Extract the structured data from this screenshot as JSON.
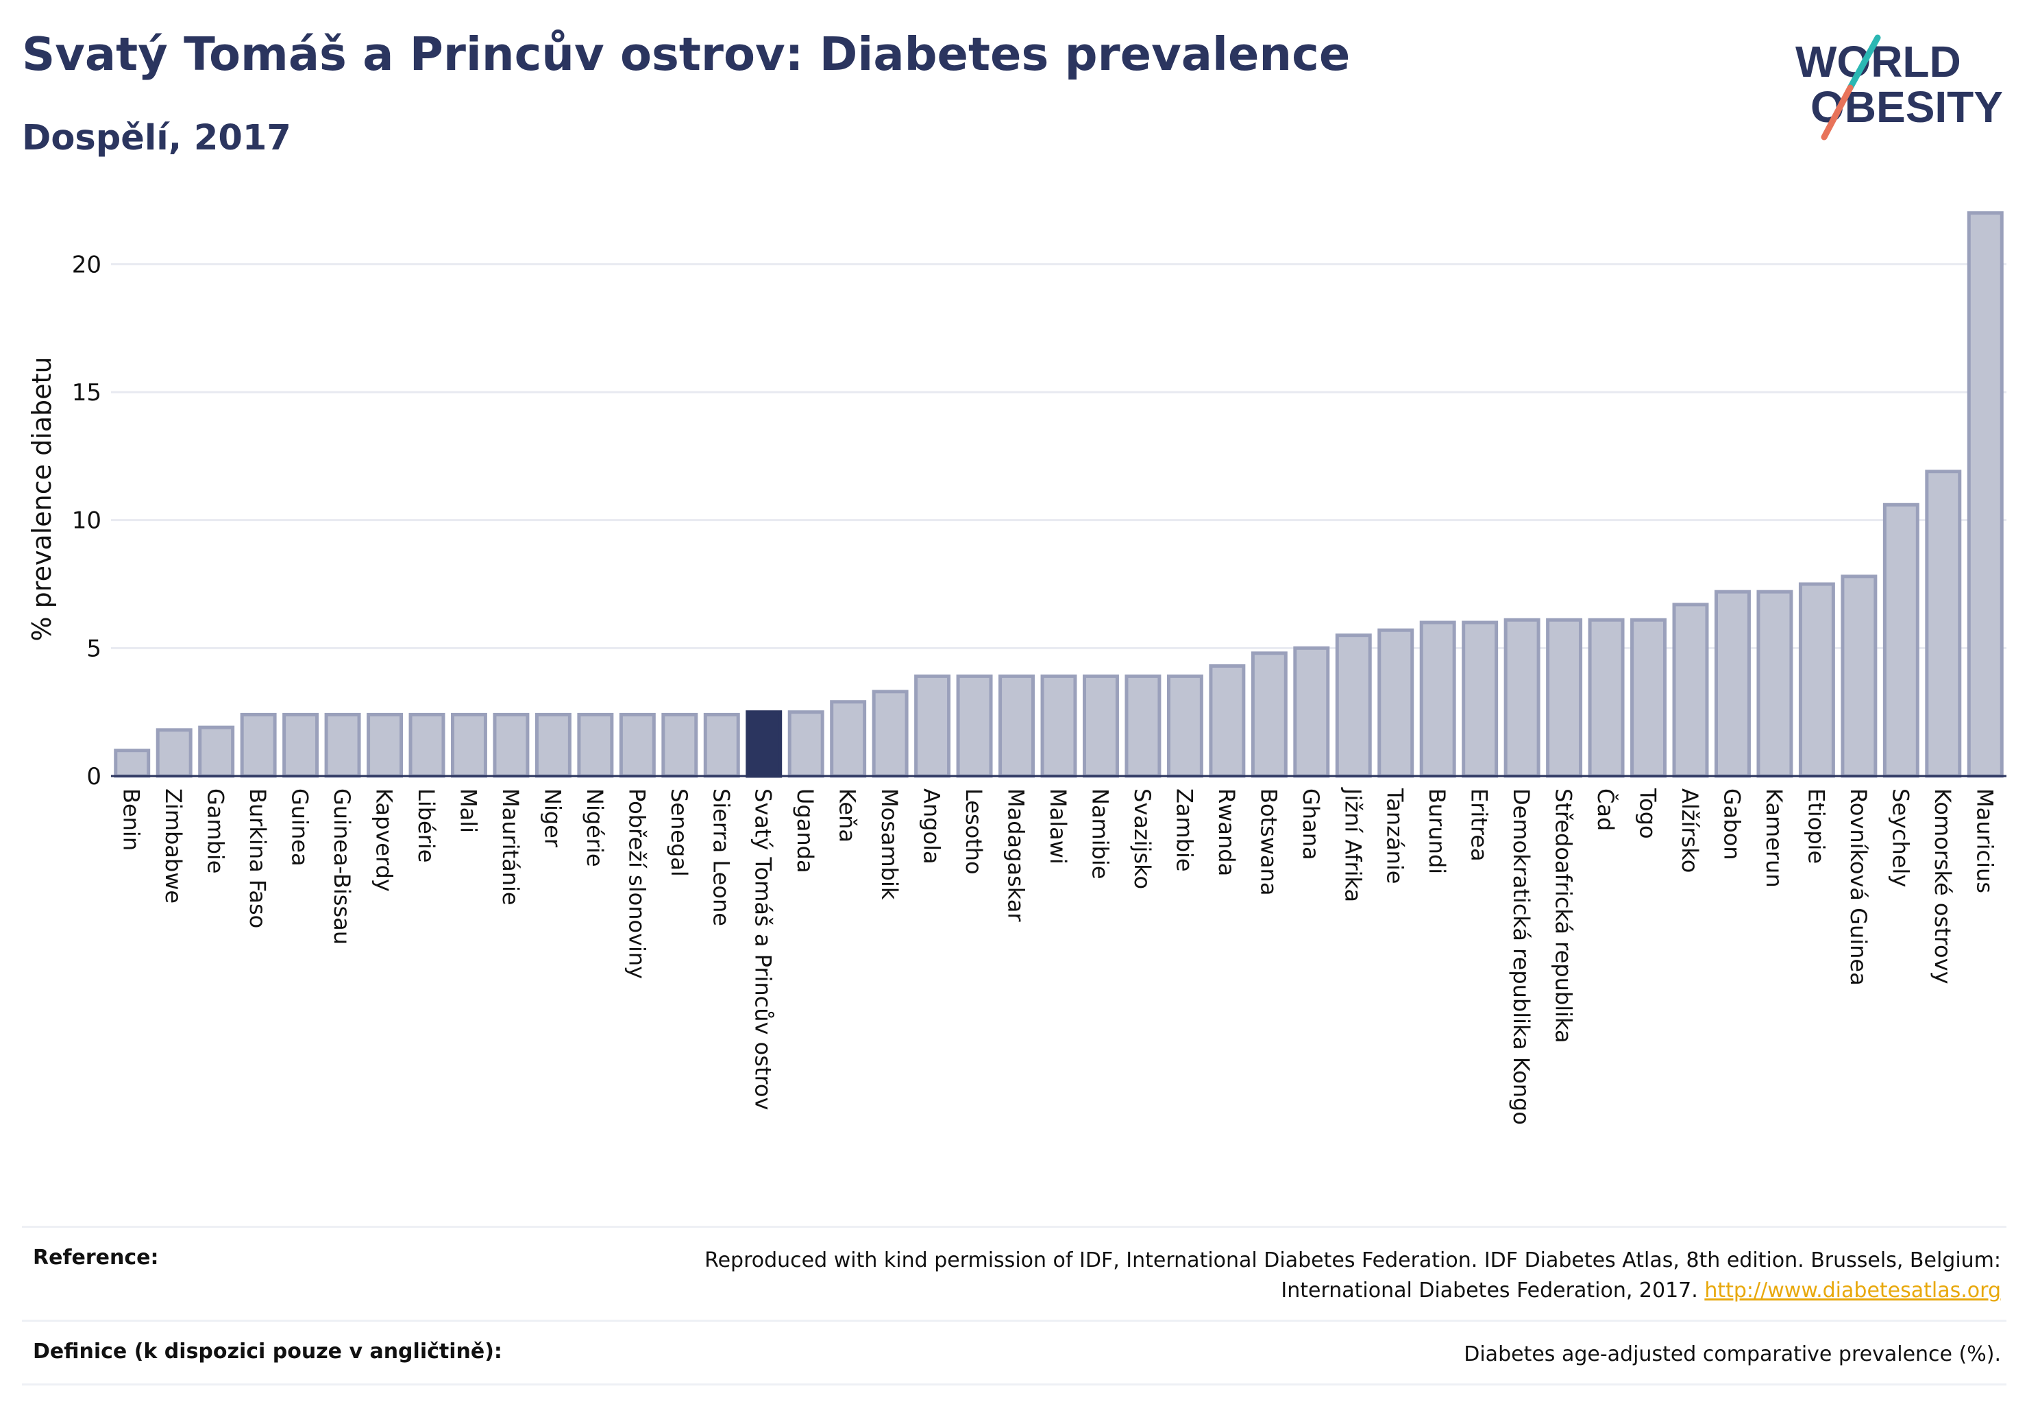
{
  "header": {
    "title": "Svatý Tomáš a Princův ostrov: Diabetes prevalence",
    "subtitle": "Dospělí, 2017"
  },
  "logo": {
    "line1": "WORLD",
    "line2": "OBESITY",
    "colors": {
      "text": "#2b355f",
      "slash_teal": "#2bb7b3",
      "slash_coral": "#e8735a"
    }
  },
  "colors": {
    "bar_fill": "#bfc3d2",
    "bar_stroke": "#9aa0bb",
    "highlight": "#2b355f",
    "grid": "#e8eaf1",
    "axis": "#2b355f"
  },
  "chart_data": {
    "type": "bar",
    "title": "Svatý Tomáš a Princův ostrov: Diabetes prevalence",
    "subtitle": "Dospělí, 2017",
    "xlabel": "",
    "ylabel": "% prevalence diabetu",
    "ylim": [
      0,
      22.5
    ],
    "yticks": [
      0,
      5,
      10,
      15,
      20
    ],
    "grid": true,
    "highlight": "Svatý Tomáš a Princův ostrov",
    "categories": [
      "Benin",
      "Zimbabwe",
      "Gambie",
      "Burkina Faso",
      "Guinea",
      "Guinea-Bissau",
      "Kapverdy",
      "Libérie",
      "Mali",
      "Mauritánie",
      "Niger",
      "Nigérie",
      "Pobřeží slonoviny",
      "Senegal",
      "Sierra Leone",
      "Svatý Tomáš a Princův ostrov",
      "Uganda",
      "Keňa",
      "Mosambik",
      "Angola",
      "Lesotho",
      "Madagaskar",
      "Malawi",
      "Namibie",
      "Svazijsko",
      "Zambie",
      "Rwanda",
      "Botswana",
      "Ghana",
      "Jižní Afrika",
      "Tanzánie",
      "Burundi",
      "Eritrea",
      "Demokratická republika Kongo",
      "Středoafrická republika",
      "Čad",
      "Togo",
      "Alžírsko",
      "Gabon",
      "Kamerun",
      "Etiopie",
      "Rovníková Guinea",
      "Seychely",
      "Komorské ostrovy",
      "Mauricius"
    ],
    "values": [
      1.0,
      1.8,
      1.9,
      2.4,
      2.4,
      2.4,
      2.4,
      2.4,
      2.4,
      2.4,
      2.4,
      2.4,
      2.4,
      2.4,
      2.4,
      2.5,
      2.5,
      2.9,
      3.3,
      3.9,
      3.9,
      3.9,
      3.9,
      3.9,
      3.9,
      3.9,
      4.3,
      4.8,
      5.0,
      5.5,
      5.7,
      6.0,
      6.0,
      6.1,
      6.1,
      6.1,
      6.1,
      6.7,
      7.2,
      7.2,
      7.5,
      7.8,
      10.6,
      11.9,
      22.0
    ]
  },
  "footer": {
    "reference_label": "Reference:",
    "reference_text": "Reproduced with kind permission of IDF, International Diabetes Federation. IDF Diabetes Atlas, 8th edition. Brussels, Belgium: International Diabetes Federation, 2017.",
    "reference_link": "http://www.diabetesatlas.org",
    "definition_label": "Definice (k dispozici pouze v angličtině):",
    "definition_text": "Diabetes age-adjusted comparative prevalence (%)."
  }
}
